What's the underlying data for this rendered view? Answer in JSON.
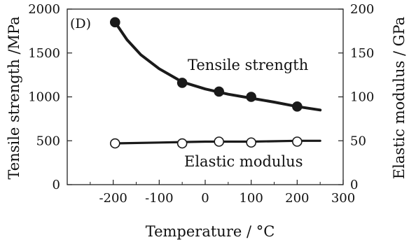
{
  "chart_data": {
    "type": "line",
    "panel_label": "(D)",
    "xlabel": "Temperature / °C",
    "ylabel_left": "Tensile strength /MPa",
    "ylabel_right": "Elastic modulus / GPa",
    "xlim": [
      -300,
      300
    ],
    "ylim_left": [
      0,
      2000
    ],
    "ylim_right": [
      0,
      200
    ],
    "x_ticks": [
      "-200",
      "-100",
      "0",
      "100",
      "200",
      "300"
    ],
    "y_ticks_left": [
      "0",
      "500",
      "1000",
      "1500",
      "2000"
    ],
    "y_ticks_right": [
      "0",
      "50",
      "100",
      "150",
      "200"
    ],
    "grid": false,
    "series": [
      {
        "name": "Tensile strength",
        "axis": "left",
        "marker": "filled-circle",
        "color": "#1a1a1a",
        "points": [
          {
            "x": -196,
            "y": 1850
          },
          {
            "x": -50,
            "y": 1160
          },
          {
            "x": 30,
            "y": 1060
          },
          {
            "x": 100,
            "y": 1000
          },
          {
            "x": 200,
            "y": 890
          }
        ],
        "curve": [
          {
            "x": -196,
            "y": 1850
          },
          {
            "x": -170,
            "y": 1650
          },
          {
            "x": -140,
            "y": 1480
          },
          {
            "x": -100,
            "y": 1320
          },
          {
            "x": -50,
            "y": 1170
          },
          {
            "x": 0,
            "y": 1090
          },
          {
            "x": 50,
            "y": 1030
          },
          {
            "x": 100,
            "y": 985
          },
          {
            "x": 150,
            "y": 940
          },
          {
            "x": 200,
            "y": 890
          },
          {
            "x": 250,
            "y": 850
          }
        ]
      },
      {
        "name": "Elastic modulus",
        "axis": "right",
        "marker": "open-circle",
        "color": "#1a1a1a",
        "points": [
          {
            "x": -196,
            "y": 47
          },
          {
            "x": -50,
            "y": 47
          },
          {
            "x": 30,
            "y": 49
          },
          {
            "x": 100,
            "y": 48
          },
          {
            "x": 200,
            "y": 49
          }
        ],
        "curve": [
          {
            "x": -196,
            "y": 47
          },
          {
            "x": -100,
            "y": 48
          },
          {
            "x": 0,
            "y": 49
          },
          {
            "x": 100,
            "y": 49
          },
          {
            "x": 200,
            "y": 50
          },
          {
            "x": 250,
            "y": 50
          }
        ]
      }
    ]
  }
}
